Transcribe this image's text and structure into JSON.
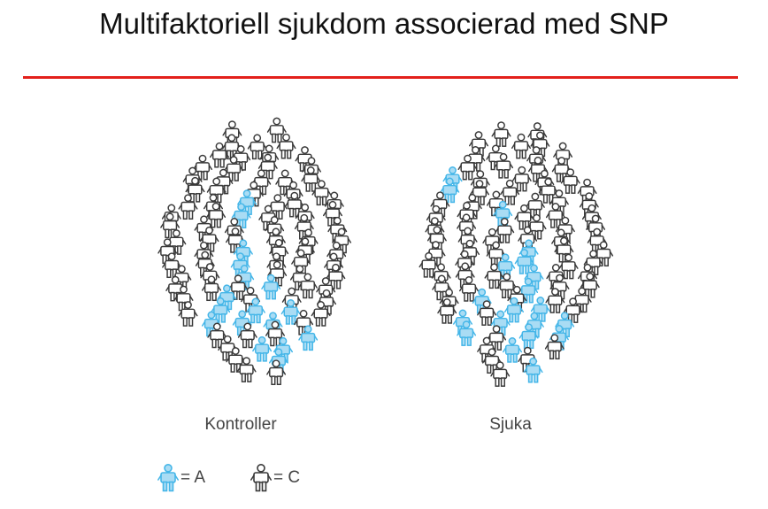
{
  "title": "Multifaktoriell sjukdom associerad med SNP",
  "colors": {
    "rule": "#e3201b",
    "allele_a": "#45b6e8",
    "allele_a_fill": "#a9dcf4",
    "allele_c": "#3a3a3a",
    "allele_c_fill": "#ffffff"
  },
  "groups": [
    {
      "label": "Kontroller"
    },
    {
      "label": "Sjuka"
    }
  ],
  "legend": [
    {
      "icon": "person-icon-blue",
      "text": "= A"
    },
    {
      "icon": "person-icon-outline",
      "text": "= C"
    }
  ]
}
